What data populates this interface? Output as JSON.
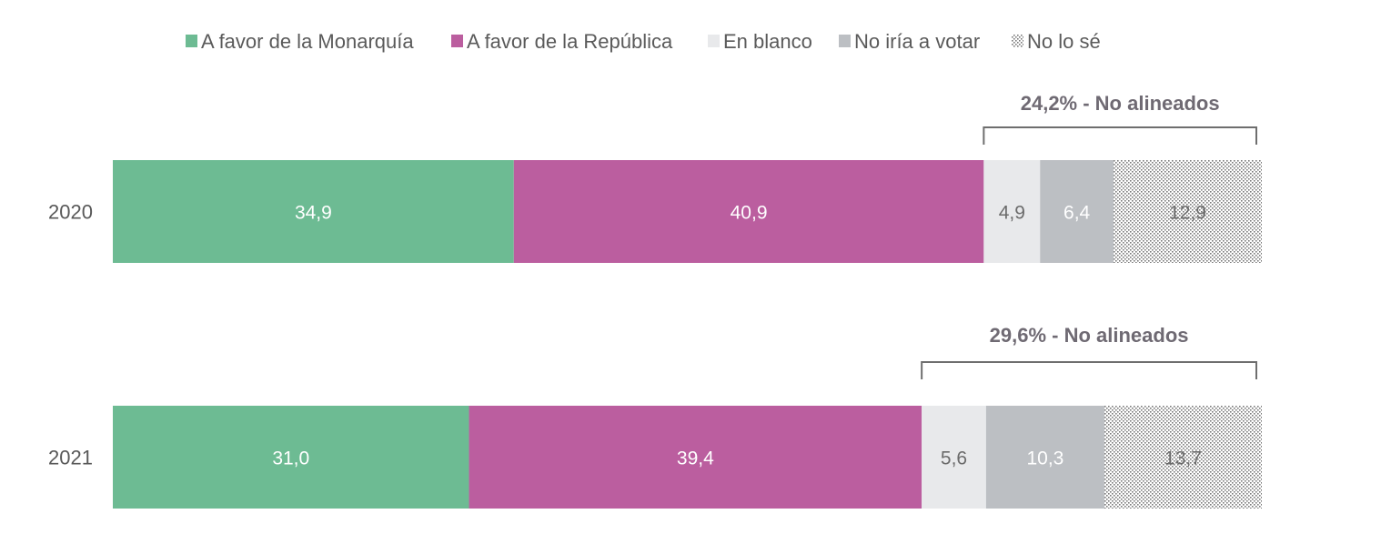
{
  "chart_data": {
    "type": "bar",
    "orientation": "horizontal",
    "stacked": true,
    "categories": [
      "2020",
      "2021"
    ],
    "series": [
      {
        "name": "A favor de la Monarquía",
        "color": "#6dbb93",
        "values": [
          34.9,
          31.0
        ],
        "labels": [
          "34,9",
          "31,0"
        ]
      },
      {
        "name": "A favor de la República",
        "color": "#bb5e9f",
        "values": [
          40.9,
          39.4
        ],
        "labels": [
          "40,9",
          "39,4"
        ]
      },
      {
        "name": "En blanco",
        "color": "#e8e9eb",
        "values": [
          4.9,
          5.6
        ],
        "labels": [
          "4,9",
          "5,6"
        ]
      },
      {
        "name": "No iría a votar",
        "color": "#bcbfc3",
        "values": [
          6.4,
          10.3
        ],
        "labels": [
          "6,4",
          "10,3"
        ]
      },
      {
        "name": "No lo sé",
        "color": "pattern-dots",
        "values": [
          12.9,
          13.7
        ],
        "labels": [
          "12,9",
          "13,7"
        ]
      }
    ],
    "annotations": [
      "24,2% - No alineados",
      "29,6% - No alineados"
    ],
    "legend_position": "top",
    "xlim": [
      0,
      100
    ],
    "grid": false
  }
}
